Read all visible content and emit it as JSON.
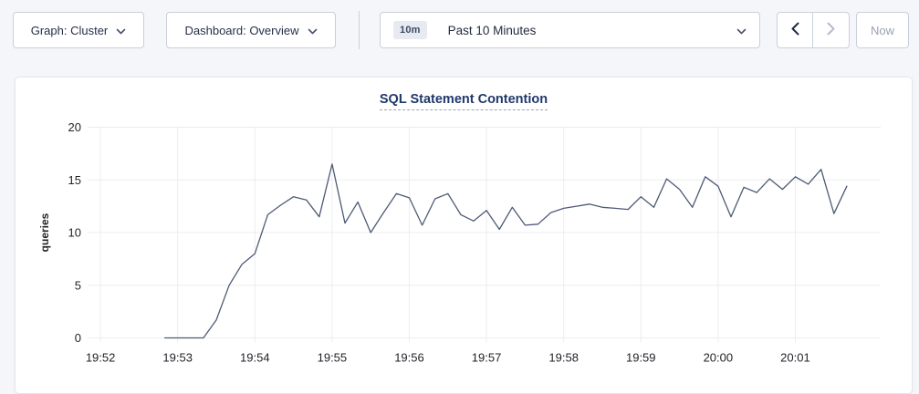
{
  "toolbar": {
    "graph_dropdown": {
      "label": "Graph: Cluster"
    },
    "dashboard_dropdown": {
      "label": "Dashboard: Overview"
    },
    "time_window": {
      "badge": "10m",
      "label": "Past 10 Minutes"
    },
    "now_label": "Now"
  },
  "colors": {
    "page_bg": "#f4f6fa",
    "card_bg": "#ffffff",
    "button_border": "#c9cfdb",
    "navy_text": "#25304a",
    "title_navy": "#20386b",
    "disabled_gray": "#b4bccb",
    "grid": "#ebedf1",
    "tick_text": "#1f2126",
    "line": "#4d5a75"
  },
  "chart_data": {
    "type": "line",
    "title": "SQL Statement Contention",
    "xlabel": "",
    "ylabel": "queries",
    "ylim": [
      0,
      20
    ],
    "y_ticks": [
      0,
      5,
      10,
      15,
      20
    ],
    "x_tick_labels": [
      "19:52",
      "19:53",
      "19:54",
      "19:55",
      "19:56",
      "19:57",
      "19:58",
      "19:59",
      "20:00",
      "20:01"
    ],
    "x_tick_seconds": [
      0,
      60,
      120,
      180,
      240,
      300,
      360,
      420,
      480,
      540
    ],
    "x_domain_seconds": [
      -10,
      595
    ],
    "grid": true,
    "legend_position": "none",
    "series": [
      {
        "name": "queries",
        "color": "#4d5a75",
        "x_seconds": [
          50,
          60,
          70,
          80,
          90,
          100,
          110,
          120,
          130,
          140,
          150,
          160,
          170,
          180,
          190,
          200,
          210,
          220,
          230,
          240,
          250,
          260,
          270,
          280,
          290,
          300,
          310,
          320,
          330,
          340,
          350,
          360,
          370,
          380,
          390,
          400,
          410,
          420,
          430,
          440,
          450,
          460,
          470,
          480,
          490,
          500,
          510,
          520,
          530,
          540,
          550,
          560,
          570,
          580
        ],
        "values": [
          0,
          0,
          0,
          0,
          1.7,
          5,
          7,
          8,
          11.7,
          12.6,
          13.4,
          13.1,
          11.5,
          16.5,
          10.9,
          12.9,
          10,
          11.9,
          13.7,
          13.3,
          10.7,
          13.2,
          13.7,
          11.7,
          11.1,
          12.1,
          10.3,
          12.4,
          10.7,
          10.8,
          11.9,
          12.3,
          12.5,
          12.7,
          12.4,
          12.3,
          12.2,
          13.4,
          12.4,
          15.1,
          14.1,
          12.4,
          15.3,
          14.4,
          11.5,
          14.3,
          13.8,
          15.1,
          14.1,
          15.3,
          14.6,
          16,
          11.8,
          14.4
        ]
      }
    ]
  }
}
